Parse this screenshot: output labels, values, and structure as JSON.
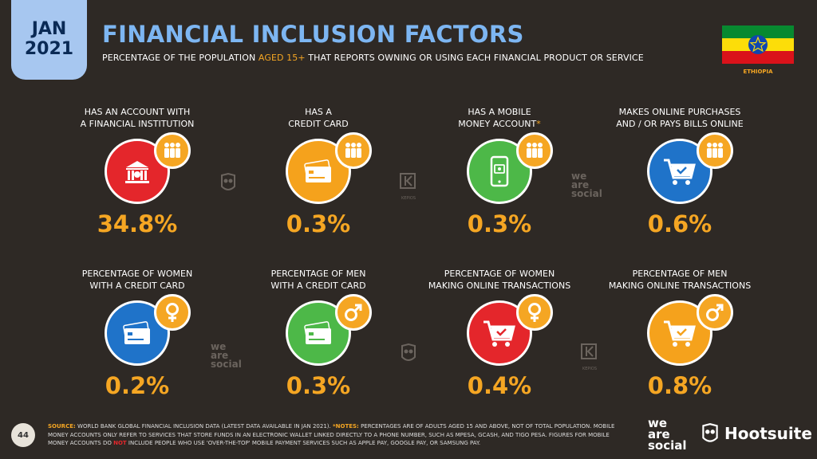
{
  "header": {
    "month": "JAN",
    "year": "2021",
    "title": "FINANCIAL INCLUSION FACTORS",
    "subtitle_pre": "PERCENTAGE OF THE POPULATION ",
    "subtitle_hl": "AGED 15+",
    "subtitle_post": " THAT REPORTS OWNING OR USING EACH FINANCIAL PRODUCT OR SERVICE",
    "country": "ETHIOPIA"
  },
  "colors": {
    "accent": "#f5a623",
    "title": "#7db6f2",
    "background": "#2e2925"
  },
  "cards": [
    {
      "label1": "HAS AN ACCOUNT WITH",
      "label2": "A FINANCIAL INSTITUTION",
      "star": "",
      "value": "34.8%",
      "icon": "bank-icon",
      "badge": "people-icon",
      "color": "red"
    },
    {
      "label1": "HAS A",
      "label2": "CREDIT CARD",
      "star": "",
      "value": "0.3%",
      "icon": "credit-card-icon",
      "badge": "people-icon",
      "color": "orange"
    },
    {
      "label1": "HAS A MOBILE",
      "label2": "MONEY ACCOUNT",
      "star": "*",
      "value": "0.3%",
      "icon": "mobile-money-icon",
      "badge": "people-icon",
      "color": "green"
    },
    {
      "label1": "MAKES ONLINE PURCHASES",
      "label2": "AND / OR PAYS BILLS ONLINE",
      "star": "",
      "value": "0.6%",
      "icon": "shopping-cart-icon",
      "badge": "people-icon",
      "color": "blue"
    },
    {
      "label1": "PERCENTAGE OF WOMEN",
      "label2": "WITH A CREDIT CARD",
      "star": "",
      "value": "0.2%",
      "icon": "credit-card-icon",
      "badge": "female-icon",
      "color": "blue"
    },
    {
      "label1": "PERCENTAGE OF MEN",
      "label2": "WITH A CREDIT CARD",
      "star": "",
      "value": "0.3%",
      "icon": "credit-card-icon",
      "badge": "male-icon",
      "color": "green"
    },
    {
      "label1": "PERCENTAGE OF WOMEN",
      "label2": "MAKING ONLINE TRANSACTIONS",
      "star": "",
      "value": "0.4%",
      "icon": "shopping-cart-icon",
      "badge": "female-icon",
      "color": "red"
    },
    {
      "label1": "PERCENTAGE OF MEN",
      "label2": "MAKING ONLINE TRANSACTIONS",
      "star": "",
      "value": "0.8%",
      "icon": "shopping-cart-icon",
      "badge": "male-icon",
      "color": "orange"
    }
  ],
  "watermarks": {
    "we": "we",
    "are": "are",
    "social": "social",
    "kepios": "KEPIOS"
  },
  "footer": {
    "page": "44",
    "source_key": "SOURCE:",
    "source_text": " WORLD BANK GLOBAL FINANCIAL INCLUSION DATA (LATEST DATA AVAILABLE IN JAN 2021). ",
    "notes_key": "*NOTES:",
    "notes_text1": " PERCENTAGES ARE OF ADULTS AGED 15 AND ABOVE, NOT OF TOTAL POPULATION. MOBILE MONEY ACCOUNTS ONLY REFER TO SERVICES THAT STORE FUNDS IN AN ELECTRONIC WALLET LINKED DIRECTLY TO A PHONE NUMBER, SUCH AS MPESA, GCASH, AND TIGO PESA. FIGURES FOR MOBILE MONEY ACCOUNTS DO ",
    "notes_bold": "NOT",
    "notes_text2": " INCLUDE PEOPLE WHO USE 'OVER-THE-TOP' MOBILE PAYMENT SERVICES SUCH AS APPLE PAY, GOOGLE PAY, OR SAMSUNG PAY.",
    "we_are_social_1": "we",
    "we_are_social_2": "are",
    "we_are_social_3": "social",
    "hootsuite": "Hootsuite"
  }
}
